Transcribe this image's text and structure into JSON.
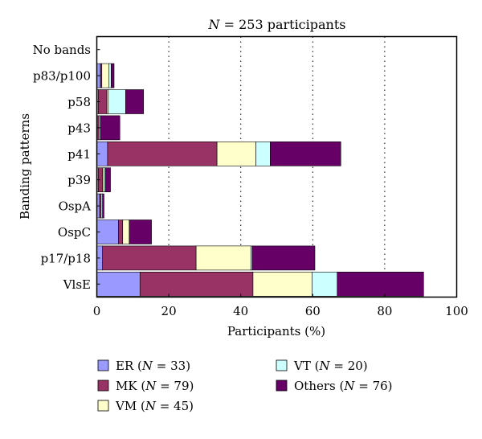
{
  "chart_data": {
    "type": "bar",
    "orientation": "horizontal",
    "stacked": true,
    "title_parts": [
      "N",
      " = 253 participants"
    ],
    "xlabel": "Participants (%)",
    "ylabel": "Banding patterns",
    "xlim": [
      0,
      100
    ],
    "xticks": [
      "0",
      "20",
      "40",
      "60",
      "80",
      "100"
    ],
    "gridlines": "dotted vertical at 20, 40, 60, 80",
    "categories": [
      "No bands",
      "p83/p100",
      "p58",
      "p43",
      "p41",
      "p39",
      "OspA",
      "OspC",
      "p17/p18",
      "VlsE"
    ],
    "series": [
      {
        "name": "ER",
        "n_label": "N = 33",
        "color": "#9999ff",
        "values": [
          0,
          1,
          0.4,
          0,
          3,
          0.4,
          0.8,
          6,
          1.6,
          12
        ]
      },
      {
        "name": "MK",
        "n_label": "N = 79",
        "color": "#993366",
        "values": [
          0,
          0.4,
          2.4,
          0.6,
          30.4,
          1.2,
          0.4,
          1.2,
          26,
          31.4
        ]
      },
      {
        "name": "VM",
        "n_label": "N = 45",
        "color": "#ffffcc",
        "values": [
          0,
          2,
          0.4,
          0,
          10.8,
          0.4,
          0,
          1.8,
          15.2,
          16.4
        ]
      },
      {
        "name": "VT",
        "n_label": "N = 20",
        "color": "#ccffff",
        "values": [
          0,
          0.6,
          4.8,
          0.4,
          4,
          0.4,
          0.4,
          0,
          0.4,
          7
        ]
      },
      {
        "name": "Others",
        "n_label": "N = 76",
        "color": "#660066",
        "values": [
          0,
          0.8,
          5,
          5.4,
          19.6,
          1.4,
          0.4,
          6.2,
          17.4,
          24
        ]
      }
    ]
  },
  "legend": [
    {
      "name": "ER",
      "n": "N",
      "value": " = 33)"
    },
    {
      "name": "MK",
      "n": "N",
      "value": " = 79)"
    },
    {
      "name": "VM",
      "n": "N",
      "value": " = 45)"
    },
    {
      "name": "VT",
      "n": "N",
      "value": " = 20)"
    },
    {
      "name": "Others",
      "n": "N",
      "value": " = 76)"
    }
  ]
}
